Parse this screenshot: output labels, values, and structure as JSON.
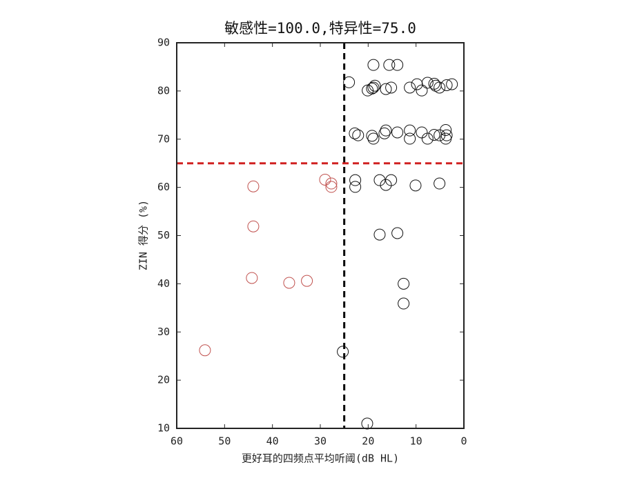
{
  "chart_data": {
    "type": "scatter",
    "title": "敏感性=100.0,特异性=75.0",
    "x_label": "更好耳的四频点平均听阈(dB HL)",
    "y_label": "ZIN 得分 (%)",
    "xlim": [
      60,
      0
    ],
    "xticks": [
      60,
      50,
      40,
      30,
      20,
      10,
      0
    ],
    "ylim": [
      10,
      90
    ],
    "yticks": [
      10,
      20,
      30,
      40,
      50,
      60,
      70,
      80,
      90
    ],
    "series": [
      {
        "color": "#c0504d",
        "x": [
          54.1,
          44.0,
          44.0,
          44.3,
          36.5,
          32.8,
          29.0,
          27.7,
          27.7
        ],
        "values": [
          26.2,
          60.2,
          51.9,
          41.2,
          40.2,
          40.6,
          61.6,
          60.8,
          60.1
        ]
      },
      {
        "color": "#111111",
        "x": [
          25.3,
          20.2,
          24.0,
          18.9,
          15.6,
          13.9,
          20.1,
          19.2,
          18.6,
          18.9,
          16.3,
          15.2,
          11.3,
          9.8,
          8.8,
          7.6,
          6.2,
          5.9,
          5.1,
          3.6,
          2.5,
          22.8,
          22.1,
          19.2,
          18.9,
          16.6,
          16.3,
          13.9,
          11.3,
          11.3,
          8.8,
          7.6,
          6.2,
          5.1,
          3.8,
          3.6,
          3.8,
          22.7,
          22.7,
          17.6,
          16.3,
          15.2,
          10.1,
          5.1,
          17.6,
          13.9,
          12.6,
          12.6
        ],
        "values": [
          25.9,
          11.0,
          81.8,
          85.4,
          85.4,
          85.4,
          80.1,
          80.5,
          81.1,
          80.7,
          80.4,
          80.7,
          80.7,
          81.4,
          80.1,
          81.7,
          81.5,
          81.1,
          80.7,
          81.2,
          81.4,
          71.2,
          70.8,
          70.7,
          70.1,
          71.2,
          71.8,
          71.4,
          71.8,
          70.1,
          71.4,
          70.1,
          70.9,
          70.8,
          71.9,
          70.8,
          70.1,
          61.5,
          60.1,
          61.5,
          60.5,
          61.5,
          60.4,
          60.8,
          50.2,
          50.5,
          40.0,
          35.9
        ]
      }
    ],
    "reference_lines": [
      {
        "axis": "x",
        "value": 25,
        "color": "#000000"
      },
      {
        "axis": "y",
        "value": 65,
        "color": "#d02020"
      }
    ]
  }
}
